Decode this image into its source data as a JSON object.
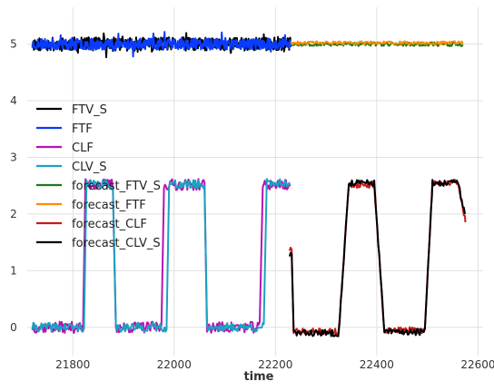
{
  "chart_data": {
    "type": "line",
    "title": "",
    "xlabel": "time",
    "ylabel": "",
    "xlim": [
      21710,
      22610
    ],
    "ylim": [
      -0.5,
      5.65
    ],
    "grid": true,
    "legend_placement": "center-left",
    "x_ticks": [
      21800,
      22000,
      22200,
      22400,
      22600
    ],
    "y_ticks": [
      0,
      1,
      2,
      3,
      4,
      5
    ],
    "series": [
      {
        "name": "FTV_S",
        "color": "#000000",
        "kind": "noise",
        "x_range": [
          21720,
          22230
        ],
        "base": 5.0,
        "amp": 0.12,
        "seed": 11,
        "step": 1
      },
      {
        "name": "FTF",
        "color": "#0a3cff",
        "kind": "noise",
        "x_range": [
          21720,
          22230
        ],
        "base": 5.0,
        "amp": 0.1,
        "seed": 23,
        "step": 1
      },
      {
        "name": "CLF",
        "color": "#b612b6",
        "kind": "square",
        "x_range": [
          21720,
          22230
        ],
        "segments": [
          [
            21720,
            21820,
            0.0
          ],
          [
            21825,
            21880,
            2.52
          ],
          [
            21885,
            21975,
            0.0
          ],
          [
            21980,
            22060,
            2.52
          ],
          [
            22065,
            22170,
            0.0
          ],
          [
            22175,
            22230,
            2.52
          ]
        ],
        "amp": 0.1,
        "seed": 37,
        "step": 2
      },
      {
        "name": "CLV_S",
        "color": "#1aa2bf",
        "kind": "square",
        "x_range": [
          21720,
          22230
        ],
        "segments": [
          [
            21720,
            21822,
            0.0
          ],
          [
            21827,
            21880,
            2.52
          ],
          [
            21885,
            21985,
            0.0
          ],
          [
            21990,
            22060,
            2.52
          ],
          [
            22065,
            22178,
            0.0
          ],
          [
            22183,
            22230,
            2.55
          ]
        ],
        "amp": 0.08,
        "seed": 41,
        "step": 2
      },
      {
        "name": "forecast_FTV_S",
        "color": "#1b7a1b",
        "kind": "noise",
        "x_range": [
          22230,
          22570
        ],
        "base": 5.0,
        "amp": 0.035,
        "seed": 53,
        "step": 2
      },
      {
        "name": "forecast_FTF",
        "color": "#ff8c00",
        "kind": "noise",
        "x_range": [
          22230,
          22570
        ],
        "base": 5.02,
        "amp": 0.03,
        "seed": 61,
        "step": 2
      },
      {
        "name": "forecast_CLF",
        "color": "#c81a1a",
        "kind": "square",
        "x_range": [
          22228,
          22575
        ],
        "segments": [
          [
            22228,
            22232,
            1.38
          ],
          [
            22236,
            22325,
            -0.08
          ],
          [
            22345,
            22395,
            2.52
          ],
          [
            22415,
            22495,
            -0.05
          ],
          [
            22510,
            22560,
            2.55
          ],
          [
            22575,
            22575,
            1.9
          ]
        ],
        "amp": 0.06,
        "seed": 71,
        "step": 2
      },
      {
        "name": "forecast_CLV_S",
        "color": "#000000",
        "kind": "square",
        "x_range": [
          22228,
          22575
        ],
        "segments": [
          [
            22228,
            22232,
            1.28
          ],
          [
            22236,
            22325,
            -0.1
          ],
          [
            22345,
            22395,
            2.55
          ],
          [
            22415,
            22495,
            -0.08
          ],
          [
            22510,
            22560,
            2.55
          ],
          [
            22575,
            22575,
            1.98
          ]
        ],
        "amp": 0.06,
        "seed": 83,
        "step": 2
      }
    ]
  }
}
